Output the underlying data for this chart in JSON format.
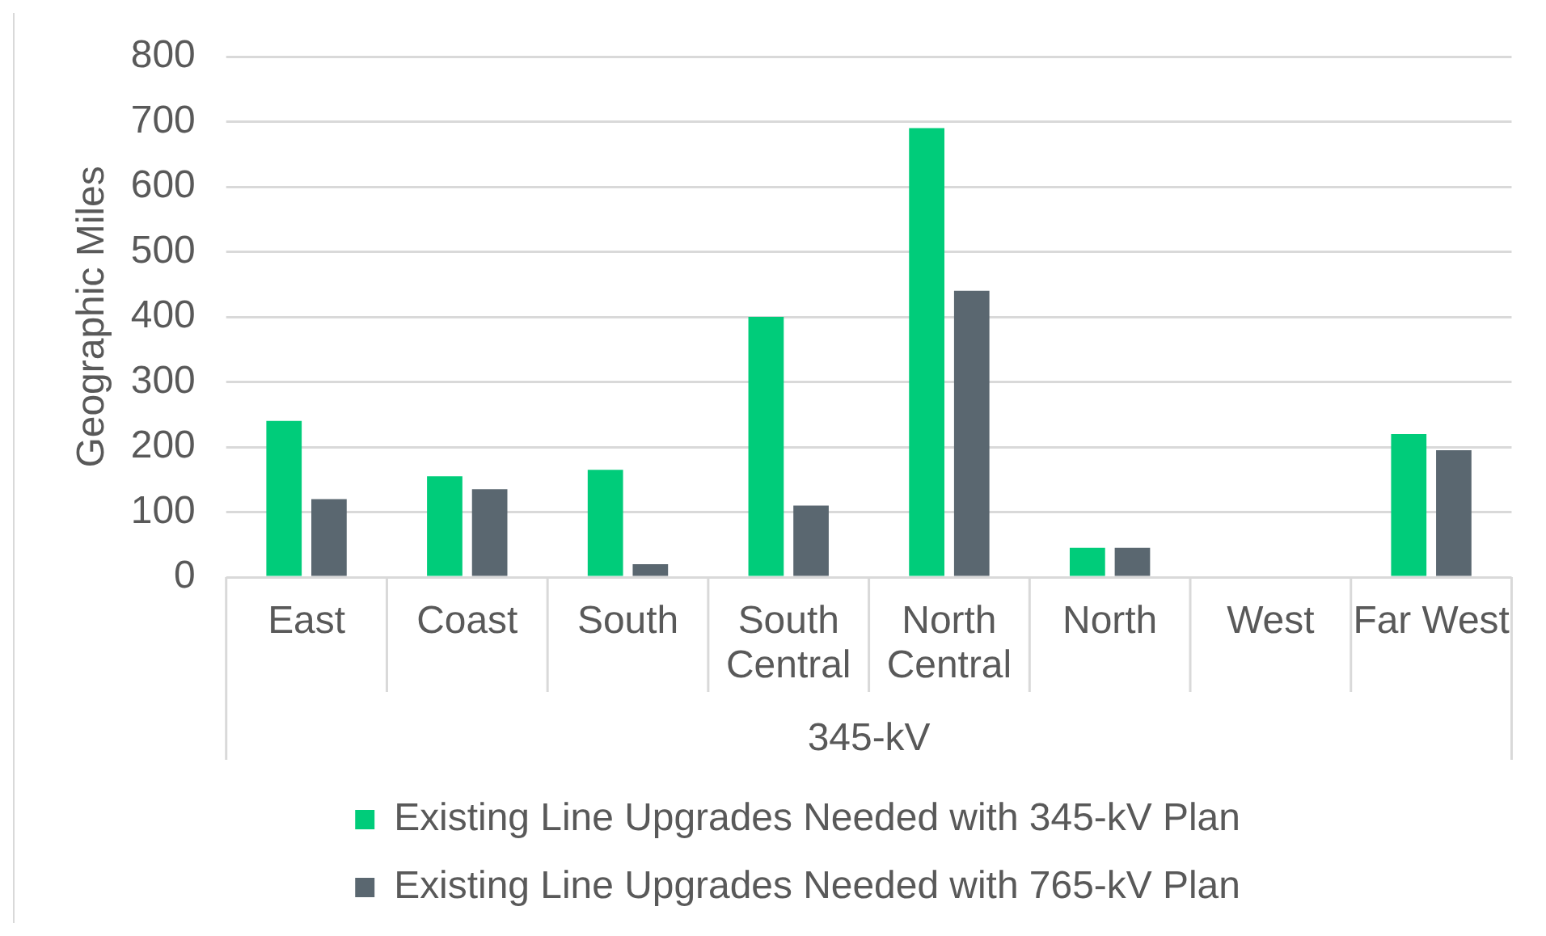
{
  "chart_data": {
    "type": "bar",
    "xlabel": "345-kV",
    "ylabel": "Geographic Miles",
    "categories": [
      "East",
      "Coast",
      "South",
      "South Central",
      "North Central",
      "North",
      "West",
      "Far West"
    ],
    "series": [
      {
        "name": "Existing Line Upgrades Needed with 345-kV Plan",
        "color": "#00cc7a",
        "values": [
          240,
          155,
          165,
          400,
          690,
          45,
          0,
          220
        ]
      },
      {
        "name": "Existing Line Upgrades Needed with 765-kV Plan",
        "color": "#5a6770",
        "values": [
          120,
          135,
          20,
          110,
          440,
          45,
          0,
          195
        ]
      }
    ],
    "ylim": [
      0,
      800
    ],
    "yticks": [
      0,
      100,
      200,
      300,
      400,
      500,
      600,
      700,
      800
    ],
    "grid": "y",
    "legend": "bottom"
  }
}
